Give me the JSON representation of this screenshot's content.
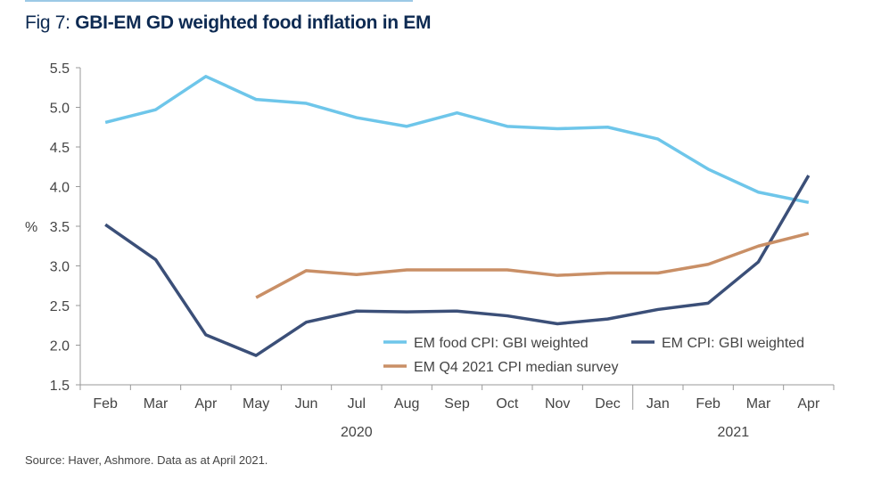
{
  "title": {
    "prefix": "Fig 7: ",
    "main": "GBI-EM GD weighted food inflation in EM"
  },
  "source": "Source: Haver, Ashmore. Data as at April 2021.",
  "chart_data": {
    "type": "line",
    "ylabel": "%",
    "ylim": [
      1.5,
      5.5
    ],
    "yticks": [
      "1.5",
      "2.0",
      "2.5",
      "3.0",
      "3.5",
      "4.0",
      "4.5",
      "5.0",
      "5.5"
    ],
    "categories": [
      "Feb",
      "Mar",
      "Apr",
      "May",
      "Jun",
      "Jul",
      "Aug",
      "Sep",
      "Oct",
      "Nov",
      "Dec",
      "Jan",
      "Feb",
      "Mar",
      "Apr"
    ],
    "year_labels": [
      {
        "label": "2020"
      },
      {
        "label": "2021"
      }
    ],
    "legend_position": "bottom-right",
    "series": [
      {
        "name": "EM food CPI: GBI weighted",
        "color": "#6ec6ea",
        "values": [
          4.81,
          4.97,
          5.39,
          5.1,
          5.05,
          4.87,
          4.76,
          4.93,
          4.76,
          4.73,
          4.75,
          4.6,
          4.22,
          3.93,
          3.8
        ]
      },
      {
        "name": "EM CPI: GBI weighted",
        "color": "#3b4f78",
        "values": [
          3.52,
          3.08,
          2.13,
          1.87,
          2.29,
          2.43,
          2.42,
          2.43,
          2.37,
          2.27,
          2.33,
          2.45,
          2.53,
          3.05,
          4.14
        ]
      },
      {
        "name": "EM Q4 2021 CPI median survey",
        "color": "#c98f66",
        "values": [
          null,
          null,
          null,
          2.6,
          2.94,
          2.89,
          2.95,
          2.95,
          2.95,
          2.88,
          2.91,
          2.91,
          3.02,
          3.25,
          3.41
        ]
      }
    ]
  }
}
